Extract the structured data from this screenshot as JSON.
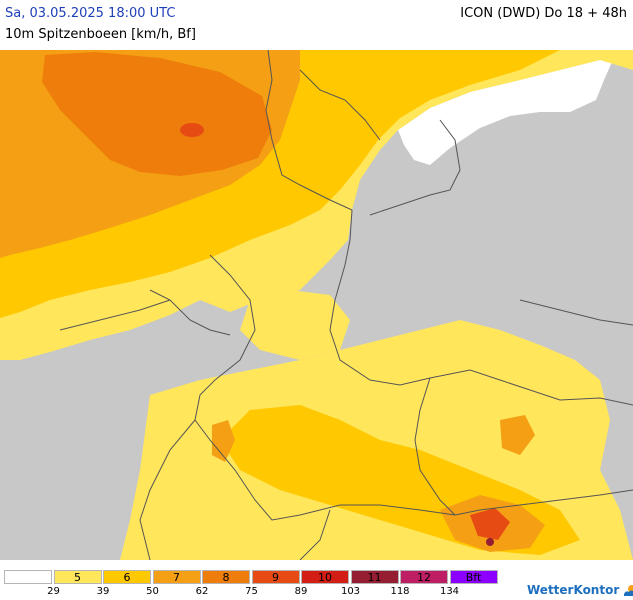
{
  "header": {
    "date_label": "Sa, 03.05.2025 18:00 UTC",
    "model_label": "ICON (DWD) Do 18 + 48h",
    "param_label": "10m Spitzenboeen [km/h, Bf]"
  },
  "map": {
    "colors": {
      "sea": "#c8c8c8",
      "calm": "#ffffff",
      "bf5": "#ffe65a",
      "bf6": "#ffc800",
      "bf7": "#f5a014",
      "bf8": "#ee7d0c",
      "bf9": "#e64b14",
      "bf10": "#d21e14",
      "bf11": "#961e32",
      "bf12": "#be1e64",
      "border": "#555555"
    }
  },
  "legend": {
    "bins": [
      {
        "label": "",
        "color": "#ffffff"
      },
      {
        "label": "5",
        "color": "#ffe65a"
      },
      {
        "label": "6",
        "color": "#ffc800"
      },
      {
        "label": "7",
        "color": "#f5a014"
      },
      {
        "label": "8",
        "color": "#ee7d0c"
      },
      {
        "label": "9",
        "color": "#e64b14"
      },
      {
        "label": "10",
        "color": "#d21e14"
      },
      {
        "label": "11",
        "color": "#961e32"
      },
      {
        "label": "12",
        "color": "#be1e64"
      },
      {
        "label": "Bft",
        "color": "#8c00ff"
      }
    ],
    "ticks": [
      "29",
      "39",
      "50",
      "62",
      "75",
      "89",
      "103",
      "118",
      "134"
    ]
  },
  "logo": {
    "text": "WetterKontor",
    "icon": "wetterkontor-logo-icon"
  }
}
